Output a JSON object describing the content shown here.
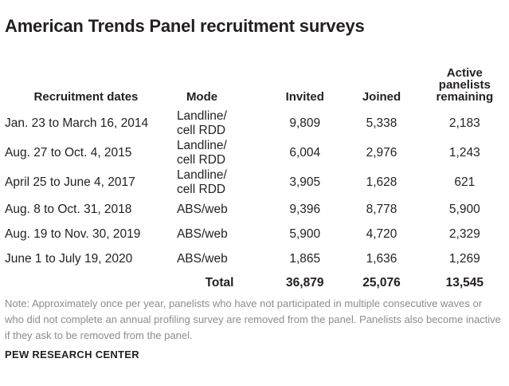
{
  "title": "American Trends Panel recruitment surveys",
  "columns": [
    "Recruitment dates",
    "Mode",
    "Invited",
    "Joined",
    "Active panelists remaining"
  ],
  "rows": [
    {
      "dates": "Jan. 23 to March 16, 2014",
      "mode": "Landline/ cell RDD",
      "invited": "9,809",
      "joined": "5,338",
      "active": "2,183"
    },
    {
      "dates": "Aug. 27 to Oct. 4, 2015",
      "mode": "Landline/ cell RDD",
      "invited": "6,004",
      "joined": "2,976",
      "active": "1,243"
    },
    {
      "dates": "April 25 to June 4, 2017",
      "mode": "Landline/ cell RDD",
      "invited": "3,905",
      "joined": "1,628",
      "active": "621"
    },
    {
      "dates": "Aug. 8 to Oct. 31, 2018",
      "mode": "ABS/web",
      "invited": "9,396",
      "joined": "8,778",
      "active": "5,900"
    },
    {
      "dates": "Aug. 19 to Nov. 30, 2019",
      "mode": "ABS/web",
      "invited": "5,900",
      "joined": "4,720",
      "active": "2,329"
    },
    {
      "dates": "June 1 to July 19, 2020",
      "mode": "ABS/web",
      "invited": "1,865",
      "joined": "1,636",
      "active": "1,269"
    }
  ],
  "total": {
    "label": "Total",
    "invited": "36,879",
    "joined": "25,076",
    "active": "13,545"
  },
  "note": "Note: Approximately once per year, panelists who have not participated in multiple consecutive waves or who did not complete an annual profiling survey are removed from the panel. Panelists also become inactive if they ask to be removed from the panel.",
  "source": "PEW RESEARCH CENTER",
  "colors": {
    "text": "#231f20",
    "note": "#8c8c8c",
    "background": "#ffffff"
  }
}
